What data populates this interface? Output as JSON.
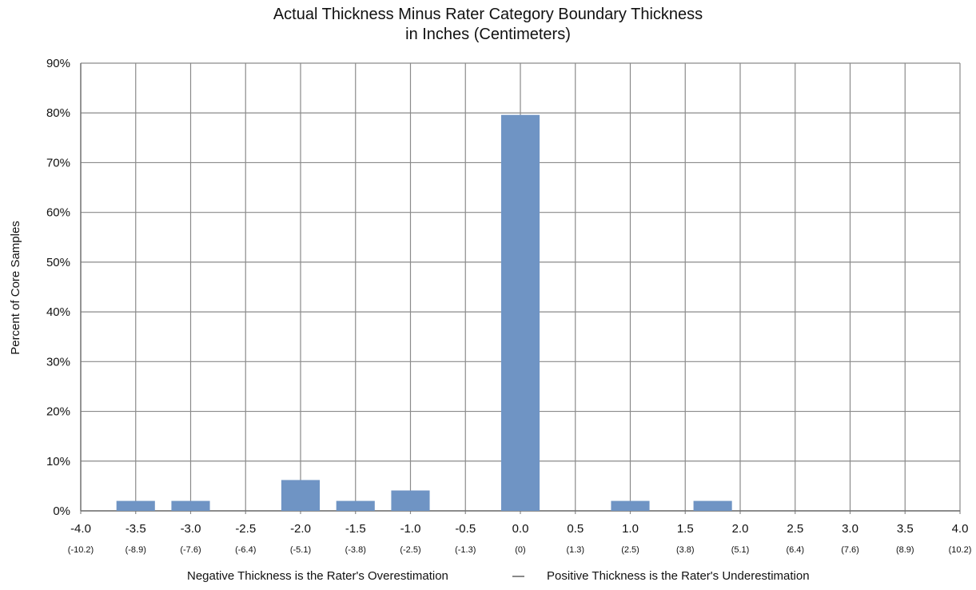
{
  "chart_data": {
    "type": "bar",
    "title_line1": "Actual Thickness Minus Rater Category Boundary Thickness",
    "title_line2": "in Inches (Centimeters)",
    "ylabel": "Percent of Core Samples",
    "xlim": [
      -4.0,
      4.0
    ],
    "ylim": [
      0,
      90
    ],
    "y_ticks": [
      "0%",
      "10%",
      "20%",
      "30%",
      "40%",
      "50%",
      "60%",
      "70%",
      "80%",
      "90%"
    ],
    "x_tick_values": [
      -4.0,
      -3.5,
      -3.0,
      -2.5,
      -2.0,
      -1.5,
      -1.0,
      -0.5,
      0.0,
      0.5,
      1.0,
      1.5,
      2.0,
      2.5,
      3.0,
      3.5,
      4.0
    ],
    "x_tick_labels": [
      "-4.0",
      "-3.5",
      "-3.0",
      "-2.5",
      "-2.0",
      "-1.5",
      "-1.0",
      "-0.5",
      "0.0",
      "0.5",
      "1.0",
      "1.5",
      "2.0",
      "2.5",
      "3.0",
      "3.5",
      "4.0"
    ],
    "x_tick_sublabels": [
      "(-10.2)",
      "(-8.9)",
      "(-7.6)",
      "(-6.4)",
      "(-5.1)",
      "(-3.8)",
      "(-2.5)",
      "(-1.3)",
      "(0)",
      "(1.3)",
      "(2.5)",
      "(3.8)",
      "(5.1)",
      "(6.4)",
      "(7.6)",
      "(8.9)",
      "(10.2)"
    ],
    "bars": [
      {
        "x": -3.5,
        "value": 2
      },
      {
        "x": -3.0,
        "value": 2
      },
      {
        "x": -2.0,
        "value": 6.2
      },
      {
        "x": -1.5,
        "value": 2
      },
      {
        "x": -1.0,
        "value": 4.1
      },
      {
        "x": 0.0,
        "value": 79.6
      },
      {
        "x": 1.0,
        "value": 2
      },
      {
        "x": 1.75,
        "value": 2
      }
    ],
    "bar_color": "#6f94c4",
    "grid": true,
    "caption_left": "Negative Thickness is the Rater's Overestimation",
    "caption_dash": "—",
    "caption_right": "Positive Thickness is the Rater's Underestimation"
  }
}
